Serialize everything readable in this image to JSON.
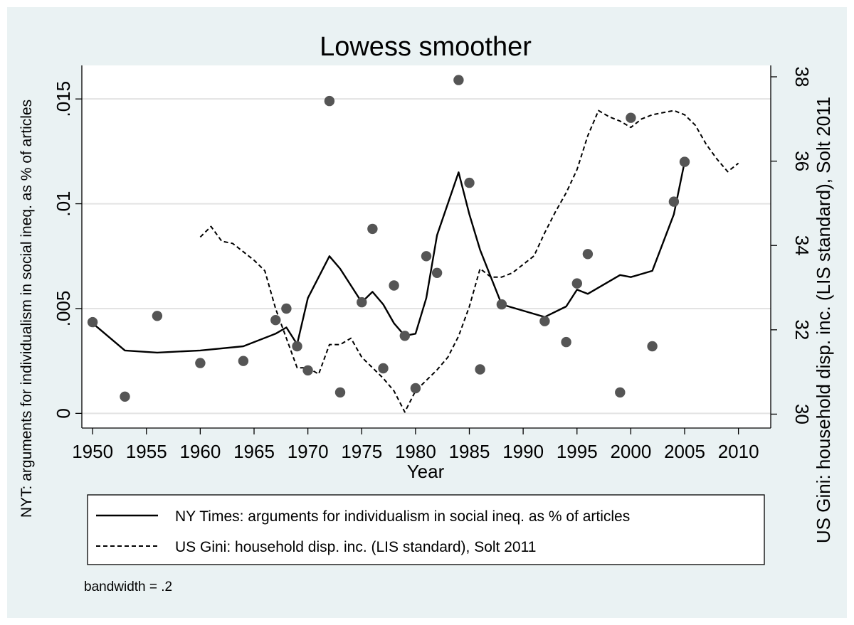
{
  "chart_data": {
    "type": "scatter",
    "title": "Lowess smoother",
    "xlabel": "Year",
    "ylabel_left": "NYT: arguments for individualism in social ineq. as % of articles",
    "ylabel_right": "US Gini: household disp. inc. (LIS standard), Solt 2011",
    "xlim": [
      1949,
      2013
    ],
    "ylim_left": [
      -0.0007,
      0.0166
    ],
    "ylim_right": [
      29.67,
      38.27
    ],
    "x_ticks": [
      1950,
      1955,
      1960,
      1965,
      1970,
      1975,
      1980,
      1985,
      1990,
      1995,
      2000,
      2005,
      2010
    ],
    "y_ticks_left": [
      {
        "value": 0,
        "label": "0"
      },
      {
        "value": 0.005,
        "label": ".005"
      },
      {
        "value": 0.01,
        "label": ".01"
      },
      {
        "value": 0.015,
        "label": ".015"
      }
    ],
    "y_ticks_right": [
      {
        "value": 30,
        "label": "30"
      },
      {
        "value": 32,
        "label": "32"
      },
      {
        "value": 34,
        "label": "34"
      },
      {
        "value": 36,
        "label": "36"
      },
      {
        "value": 38,
        "label": "38"
      }
    ],
    "grid": true,
    "legend_position": "bottom",
    "note": "bandwidth = .2",
    "colors": {
      "background": "#eaf2f3",
      "plot": "#ffffff",
      "points": "#555555",
      "lines": "#000000",
      "grid": "#e3e3e3"
    },
    "scatter_points": [
      {
        "x": 1950,
        "y": 0.00435
      },
      {
        "x": 1953,
        "y": 0.0008
      },
      {
        "x": 1956,
        "y": 0.00465
      },
      {
        "x": 1960,
        "y": 0.0024
      },
      {
        "x": 1964,
        "y": 0.0025
      },
      {
        "x": 1967,
        "y": 0.00445
      },
      {
        "x": 1968,
        "y": 0.005
      },
      {
        "x": 1969,
        "y": 0.0032
      },
      {
        "x": 1970,
        "y": 0.00205
      },
      {
        "x": 1972,
        "y": 0.0149
      },
      {
        "x": 1973,
        "y": 0.001
      },
      {
        "x": 1975,
        "y": 0.0053
      },
      {
        "x": 1976,
        "y": 0.0088
      },
      {
        "x": 1977,
        "y": 0.00215
      },
      {
        "x": 1978,
        "y": 0.0061
      },
      {
        "x": 1979,
        "y": 0.0037
      },
      {
        "x": 1980,
        "y": 0.0012
      },
      {
        "x": 1981,
        "y": 0.0075
      },
      {
        "x": 1982,
        "y": 0.0067
      },
      {
        "x": 1984,
        "y": 0.0159
      },
      {
        "x": 1985,
        "y": 0.011
      },
      {
        "x": 1986,
        "y": 0.0021
      },
      {
        "x": 1988,
        "y": 0.0052
      },
      {
        "x": 1992,
        "y": 0.0044
      },
      {
        "x": 1994,
        "y": 0.0034
      },
      {
        "x": 1995,
        "y": 0.0062
      },
      {
        "x": 1996,
        "y": 0.0076
      },
      {
        "x": 1999,
        "y": 0.001
      },
      {
        "x": 2000,
        "y": 0.0141
      },
      {
        "x": 2002,
        "y": 0.0032
      },
      {
        "x": 2004,
        "y": 0.0101
      },
      {
        "x": 2005,
        "y": 0.012
      }
    ],
    "series": [
      {
        "name": "NY Times: arguments for individualism in social ineq. as % of articles",
        "axis": "left",
        "style": "solid",
        "points": [
          [
            1950,
            0.0043
          ],
          [
            1953,
            0.003
          ],
          [
            1956,
            0.0029
          ],
          [
            1960,
            0.003
          ],
          [
            1964,
            0.0032
          ],
          [
            1967,
            0.0038
          ],
          [
            1968,
            0.0041
          ],
          [
            1969,
            0.0033
          ],
          [
            1970,
            0.0055
          ],
          [
            1972,
            0.0075
          ],
          [
            1973,
            0.0069
          ],
          [
            1975,
            0.0053
          ],
          [
            1976,
            0.0058
          ],
          [
            1977,
            0.0052
          ],
          [
            1978,
            0.0043
          ],
          [
            1979,
            0.0037
          ],
          [
            1980,
            0.0038
          ],
          [
            1981,
            0.0055
          ],
          [
            1982,
            0.0085
          ],
          [
            1984,
            0.0115
          ],
          [
            1985,
            0.0095
          ],
          [
            1986,
            0.0078
          ],
          [
            1988,
            0.0052
          ],
          [
            1992,
            0.0046
          ],
          [
            1994,
            0.0051
          ],
          [
            1995,
            0.0059
          ],
          [
            1996,
            0.0057
          ],
          [
            1999,
            0.0066
          ],
          [
            2000,
            0.0065
          ],
          [
            2002,
            0.0068
          ],
          [
            2004,
            0.0095
          ],
          [
            2005,
            0.012
          ]
        ]
      },
      {
        "name": "US Gini: household disp. inc. (LIS standard), Solt 2011",
        "axis": "right",
        "style": "dashed",
        "points": [
          [
            1960,
            34.2
          ],
          [
            1961,
            34.45
          ],
          [
            1962,
            34.1
          ],
          [
            1963,
            34.05
          ],
          [
            1964,
            33.85
          ],
          [
            1965,
            33.65
          ],
          [
            1966,
            33.4
          ],
          [
            1967,
            32.5
          ],
          [
            1968,
            31.8
          ],
          [
            1969,
            31.1
          ],
          [
            1970,
            31.1
          ],
          [
            1971,
            30.95
          ],
          [
            1972,
            31.65
          ],
          [
            1973,
            31.65
          ],
          [
            1974,
            31.8
          ],
          [
            1975,
            31.35
          ],
          [
            1976,
            31.1
          ],
          [
            1977,
            30.85
          ],
          [
            1978,
            30.55
          ],
          [
            1979,
            30.05
          ],
          [
            1980,
            30.55
          ],
          [
            1981,
            30.8
          ],
          [
            1982,
            31.05
          ],
          [
            1983,
            31.35
          ],
          [
            1984,
            31.85
          ],
          [
            1985,
            32.55
          ],
          [
            1986,
            33.45
          ],
          [
            1987,
            33.25
          ],
          [
            1988,
            33.25
          ],
          [
            1989,
            33.35
          ],
          [
            1990,
            33.55
          ],
          [
            1991,
            33.75
          ],
          [
            1992,
            34.3
          ],
          [
            1993,
            34.8
          ],
          [
            1994,
            35.25
          ],
          [
            1995,
            35.8
          ],
          [
            1996,
            36.6
          ],
          [
            1997,
            37.2
          ],
          [
            1998,
            37.05
          ],
          [
            1999,
            36.95
          ],
          [
            2000,
            36.8
          ],
          [
            2001,
            37.0
          ],
          [
            2002,
            37.1
          ],
          [
            2003,
            37.15
          ],
          [
            2004,
            37.2
          ],
          [
            2005,
            37.1
          ],
          [
            2006,
            36.85
          ],
          [
            2007,
            36.4
          ],
          [
            2008,
            36.05
          ],
          [
            2009,
            35.75
          ],
          [
            2010,
            35.95
          ]
        ]
      }
    ]
  }
}
